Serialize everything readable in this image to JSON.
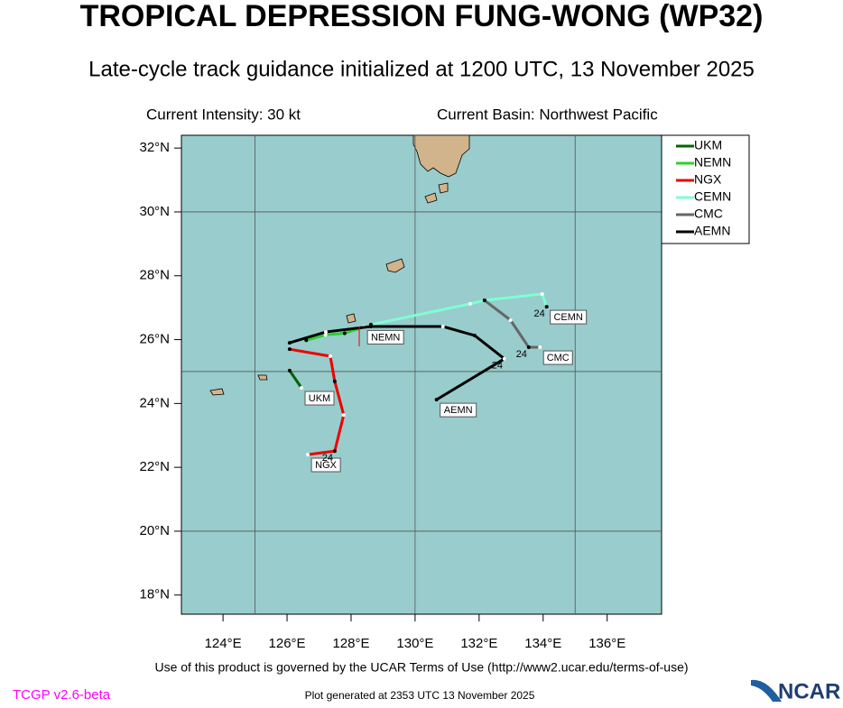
{
  "chart_data": {
    "type": "track",
    "title": "TROPICAL DEPRESSION FUNG-WONG (WP32)",
    "subtitle": "Late-cycle track guidance initialized at 1200 UTC, 13 November 2025",
    "current_intensity": "Current Intensity: 30 kt",
    "current_basin": "Current Basin: Northwest Pacific",
    "xlim": [
      122.7,
      137.7
    ],
    "ylim": [
      17.4,
      32.4
    ],
    "xticks": [
      {
        "value": 124,
        "label": "124°E"
      },
      {
        "value": 126,
        "label": "126°E"
      },
      {
        "value": 128,
        "label": "128°E"
      },
      {
        "value": 130,
        "label": "130°E"
      },
      {
        "value": 132,
        "label": "132°E"
      },
      {
        "value": 134,
        "label": "134°E"
      },
      {
        "value": 136,
        "label": "136°E"
      }
    ],
    "yticks": [
      {
        "value": 18,
        "label": "18°N"
      },
      {
        "value": 20,
        "label": "20°N"
      },
      {
        "value": 22,
        "label": "22°N"
      },
      {
        "value": 24,
        "label": "24°N"
      },
      {
        "value": 26,
        "label": "26°N"
      },
      {
        "value": 28,
        "label": "28°N"
      },
      {
        "value": 30,
        "label": "30°N"
      },
      {
        "value": 32,
        "label": "32°N"
      }
    ],
    "xgrid": [
      125,
      130,
      135
    ],
    "ygrid": [
      20,
      25,
      30
    ],
    "series": [
      {
        "name": "UKM",
        "color": "#006400",
        "x": [
          126.08,
          126.45
        ],
        "values": [
          25.03,
          24.49
        ]
      },
      {
        "name": "NEMN",
        "color": "#32cd32",
        "x": [
          126.6,
          127.2,
          127.8,
          128.4
        ],
        "values": [
          25.98,
          26.15,
          26.2,
          26.4
        ]
      },
      {
        "name": "NGX",
        "color": "#ee0000",
        "x": [
          126.08,
          127.35,
          127.49,
          127.77,
          127.49,
          126.65
        ],
        "values": [
          25.7,
          25.48,
          24.69,
          23.64,
          22.51,
          22.4
        ],
        "hour_24": {
          "x": 127.49,
          "y": 22.51,
          "label": "24"
        }
      },
      {
        "name": "CEMN",
        "color": "#7fffd4",
        "x": [
          128.62,
          131.72,
          132.17,
          133.97,
          134.11
        ],
        "values": [
          26.47,
          27.12,
          27.23,
          27.43,
          27.03
        ],
        "hour_24": {
          "x": 134.11,
          "y": 27.03,
          "label": "24"
        }
      },
      {
        "name": "CMC",
        "color": "#666666",
        "x": [
          132.17,
          132.98,
          133.55,
          133.9
        ],
        "values": [
          27.23,
          26.61,
          25.76,
          25.76
        ],
        "hour_24": {
          "x": 133.55,
          "y": 25.76,
          "label": "24"
        }
      },
      {
        "name": "AEMN",
        "color": "#000000",
        "x": [
          126.08,
          127.21,
          128.62,
          130.87,
          131.86,
          132.79,
          130.67
        ],
        "values": [
          25.9,
          26.24,
          26.41,
          26.41,
          26.13,
          25.4,
          24.12
        ],
        "hour_24": {
          "x": 132.79,
          "y": 25.4,
          "label": "24"
        }
      }
    ],
    "ocean_color": "#99cccc",
    "land_color": "#d2b48c",
    "terms": "Use of this product is governed by the UCAR Terms of Use (http://www2.ucar.edu/terms-of-use)",
    "version": "TCGP v2.6-beta",
    "generated": "Plot generated at 2353 UTC   13 November 2025",
    "logo": "NCAR"
  }
}
